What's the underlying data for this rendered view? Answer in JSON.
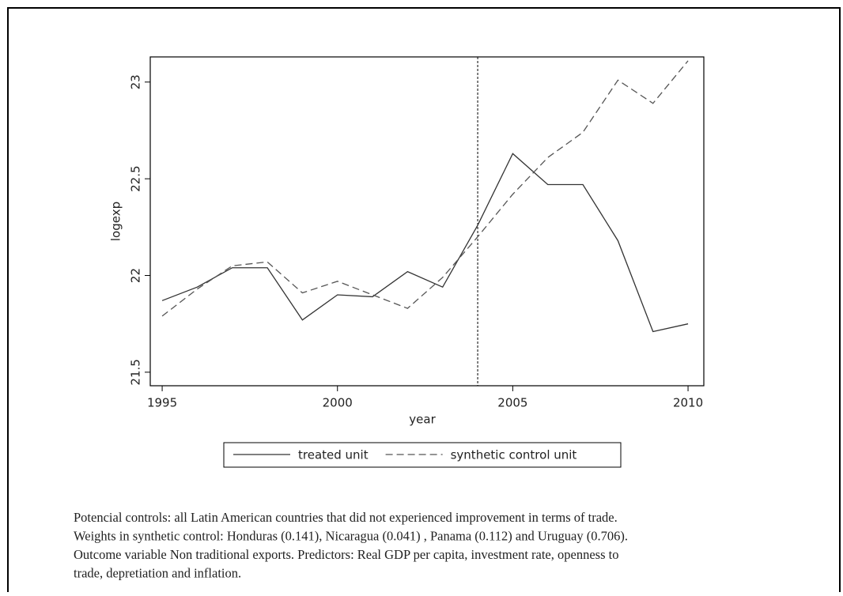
{
  "chart_data": {
    "type": "line",
    "x": [
      1995,
      1996,
      1997,
      1998,
      1999,
      2000,
      2001,
      2002,
      2003,
      2004,
      2005,
      2006,
      2007,
      2008,
      2009,
      2010
    ],
    "series": [
      {
        "name": "treated unit",
        "color": "#333333",
        "dash": "solid",
        "values": [
          21.87,
          21.94,
          22.04,
          22.04,
          21.77,
          21.9,
          21.89,
          22.02,
          21.94,
          22.26,
          22.63,
          22.47,
          22.47,
          22.18,
          21.71,
          21.75
        ]
      },
      {
        "name": "synthetic control unit",
        "color": "#555555",
        "dash": "dashed",
        "values": [
          21.79,
          21.93,
          22.05,
          22.07,
          21.91,
          21.97,
          21.9,
          21.83,
          21.99,
          22.2,
          22.42,
          22.61,
          22.74,
          23.01,
          22.89,
          23.11
        ]
      }
    ],
    "xlabel": "year",
    "ylabel": "logexp",
    "xlim": [
      1994.66,
      2010.45
    ],
    "ylim": [
      21.43,
      23.13
    ],
    "xticks": [
      1995,
      2000,
      2005,
      2010
    ],
    "yticks": [
      21.5,
      22,
      22.5,
      23
    ],
    "vline": 2004,
    "legend": "bottom"
  },
  "caption": [
    "Potencial controls: all Latin American  countries that did not experienced improvement in terms of trade.",
    "Weights in synthetic control: Honduras (0.141), Nicaragua (0.041) , Panama (0.112)  and Uruguay (0.706).",
    "Outcome variable Non traditional exports.  Predictors: Real GDP per capita, investment rate, openness to",
    "trade, depretiation and  inflation."
  ]
}
